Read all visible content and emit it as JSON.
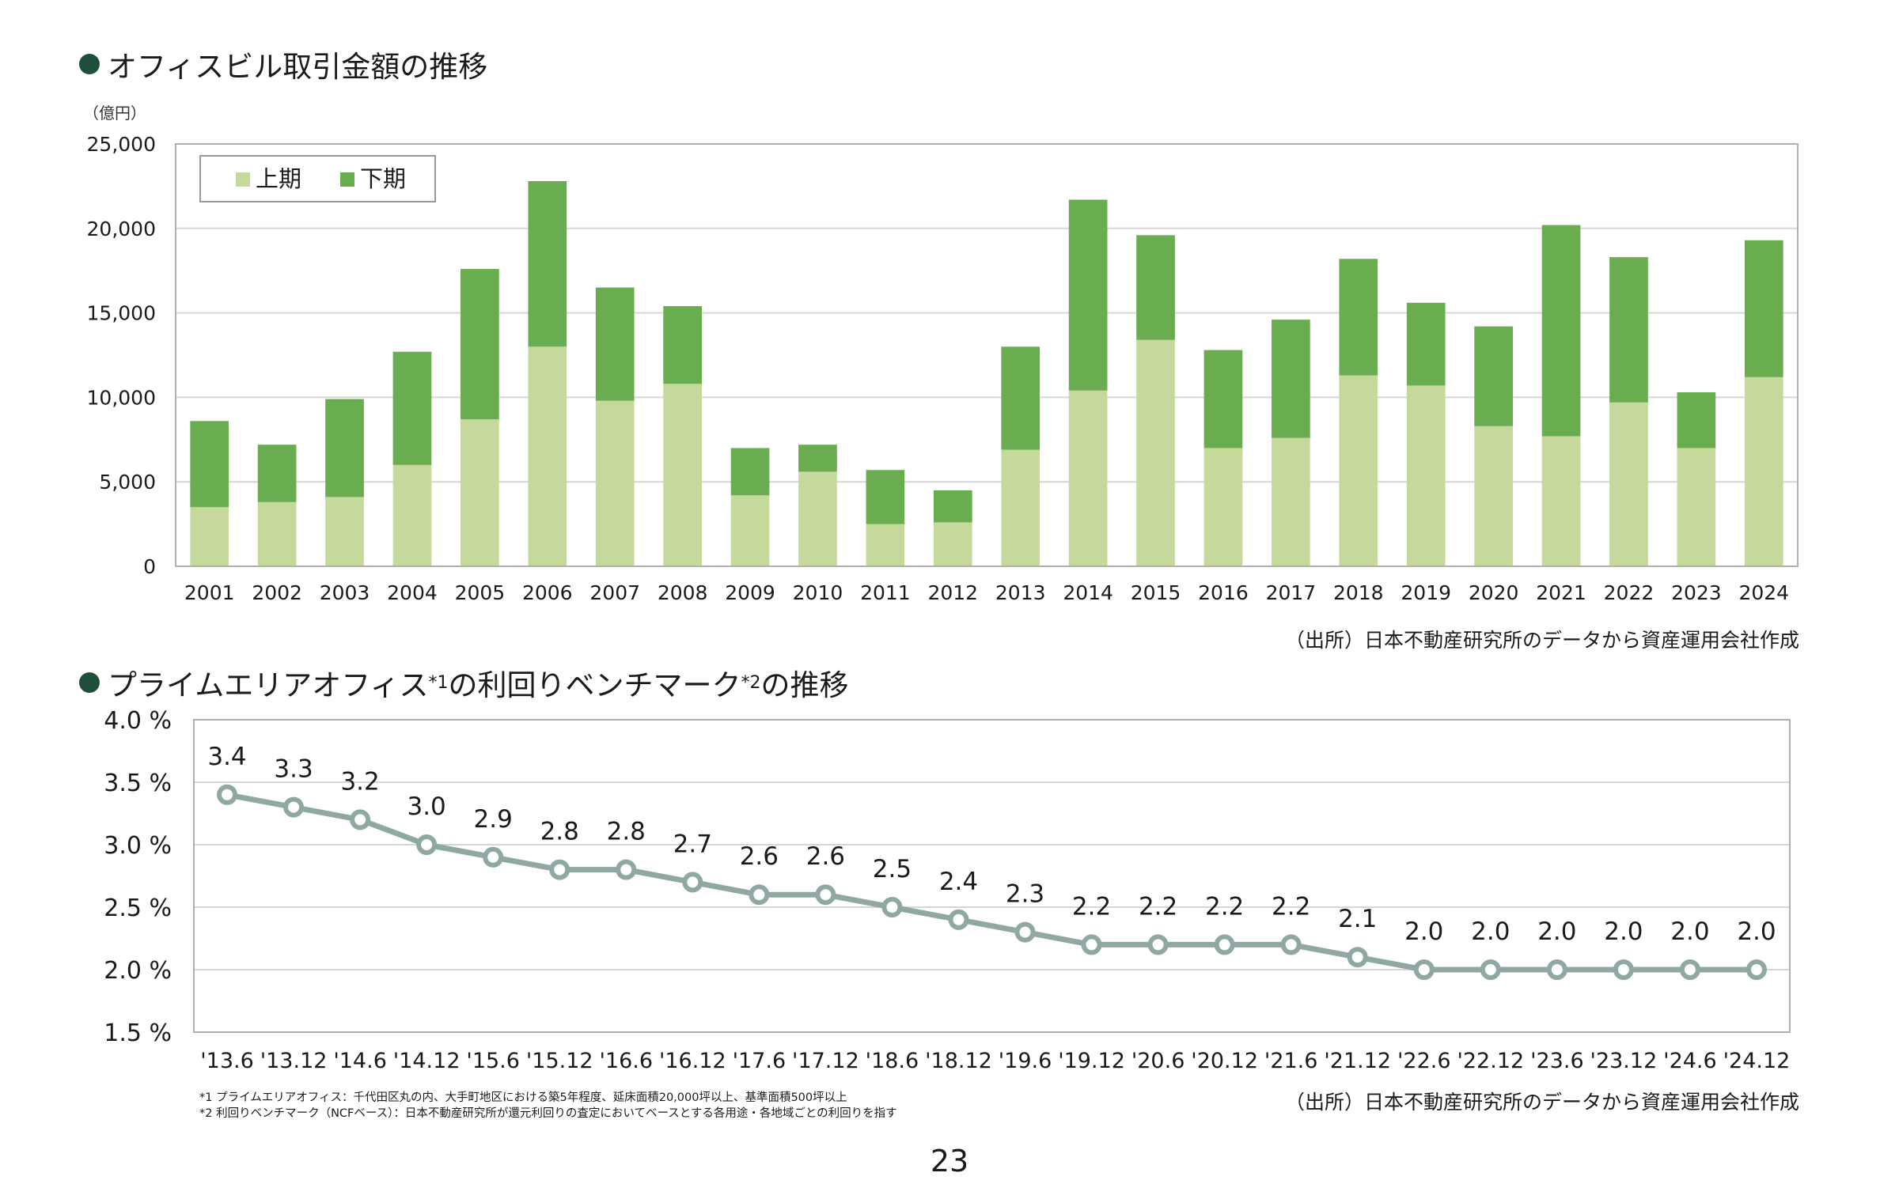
{
  "page_number": "23",
  "charts": {
    "bar": {
      "title": "オフィスビル取引金額の推移",
      "source": "（出所）日本不動産研究所のデータから資産運用会社作成"
    },
    "line": {
      "title_main": "プライムエリアオフィス",
      "title_sup1": "*1",
      "title_mid": "の利回りベンチマーク",
      "title_sup2": "*2",
      "title_end": "の推移",
      "source": "（出所）日本不動産研究所のデータから資産運用会社作成",
      "footnotes": [
        "*1 プライムエリアオフィス：千代田区丸の内、大手町地区における築5年程度、延床面積20,000坪以上、基準面積500坪以上",
        "*2 利回りベンチマーク（NCFベース）：日本不動産研究所が還元利回りの査定においてベースとする各用途・各地域ごとの利回りを指す"
      ]
    }
  },
  "chart_data": [
    {
      "type": "bar",
      "stacked": true,
      "title": "オフィスビル取引金額の推移",
      "ylabel": "（億円）",
      "ylim": [
        0,
        25000
      ],
      "yticks": [
        "0",
        "5,000",
        "10,000",
        "15,000",
        "20,000",
        "25,000"
      ],
      "grid": true,
      "legend_position": "top-left",
      "categories": [
        "2001",
        "2002",
        "2003",
        "2004",
        "2005",
        "2006",
        "2007",
        "2008",
        "2009",
        "2010",
        "2011",
        "2012",
        "2013",
        "2014",
        "2015",
        "2016",
        "2017",
        "2018",
        "2019",
        "2020",
        "2021",
        "2022",
        "2023",
        "2024"
      ],
      "series": [
        {
          "name": "上期",
          "color": "#c5d99d",
          "values": [
            3500,
            3800,
            4100,
            6000,
            8700,
            13000,
            9800,
            10800,
            4200,
            5600,
            2500,
            2600,
            6900,
            10400,
            13400,
            7000,
            7600,
            11300,
            10700,
            8300,
            7700,
            9700,
            7000,
            11200
          ]
        },
        {
          "name": "下期",
          "color": "#6aad50",
          "values": [
            5100,
            3400,
            5800,
            6700,
            8900,
            9800,
            6700,
            4600,
            2800,
            1600,
            3200,
            1900,
            6100,
            11300,
            6200,
            5800,
            7000,
            6900,
            4900,
            5900,
            12500,
            8600,
            3300,
            8100
          ]
        }
      ]
    },
    {
      "type": "line",
      "title": "プライムエリアオフィスの利回りベンチマークの推移",
      "ylim": [
        1.5,
        4.0
      ],
      "yticks": [
        "1.5 %",
        "2.0 %",
        "2.5 %",
        "3.0 %",
        "3.5 %",
        "4.0 %"
      ],
      "grid": true,
      "color": "#8fa8a4",
      "x": [
        "'13.6",
        "'13.12",
        "'14.6",
        "'14.12",
        "'15.6",
        "'15.12",
        "'16.6",
        "'16.12",
        "'17.6",
        "'17.12",
        "'18.6",
        "'18.12",
        "'19.6",
        "'19.12",
        "'20.6",
        "'20.12",
        "'21.6",
        "'21.12",
        "'22.6",
        "'22.12",
        "'23.6",
        "'23.12",
        "'24.6",
        "'24.12"
      ],
      "values": [
        3.4,
        3.3,
        3.2,
        3.0,
        2.9,
        2.8,
        2.8,
        2.7,
        2.6,
        2.6,
        2.5,
        2.4,
        2.3,
        2.2,
        2.2,
        2.2,
        2.2,
        2.1,
        2.0,
        2.0,
        2.0,
        2.0,
        2.0,
        2.0
      ],
      "data_labels": [
        "3.4",
        "3.3",
        "3.2",
        "3.0",
        "2.9",
        "2.8",
        "2.8",
        "2.7",
        "2.6",
        "2.6",
        "2.5",
        "2.4",
        "2.3",
        "2.2",
        "2.2",
        "2.2",
        "2.2",
        "2.1",
        "2.0",
        "2.0",
        "2.0",
        "2.0",
        "2.0",
        "2.0"
      ]
    }
  ]
}
